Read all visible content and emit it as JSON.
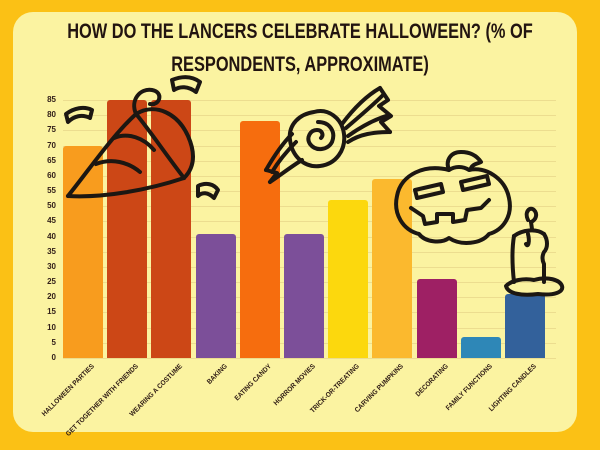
{
  "title": {
    "line1": "HOW DO THE LANCERS CELEBRATE HALLOWEEN? (% OF",
    "line2": "RESPONDENTS, APPROXIMATE)"
  },
  "colors": {
    "page_border": "#fbc115",
    "panel_background": "#fbf3a1",
    "gridline": "#ecdd8f",
    "text": "#2e1b14"
  },
  "chart_data": {
    "type": "bar",
    "title": "How do the Lancers celebrate Halloween? (% of respondents, approximate)",
    "categories": [
      "HALLOWEEN PARTIES",
      "GET TOGETHER WITH FRIENDS",
      "WEARING A COSTUME",
      "BAKING",
      "EATING CANDY",
      "HORROR MOVIES",
      "TRICK-OR-TREATING",
      "CARVING PUMPKINS",
      "DECORATING",
      "FAMILY FUNCTIONS",
      "LIGHTING CANDLES"
    ],
    "values": [
      70,
      85,
      85,
      41,
      78,
      41,
      52,
      59,
      26,
      7,
      21
    ],
    "bar_colors": [
      "#f89c1e",
      "#cc4716",
      "#cc4716",
      "#7c4f99",
      "#f66d0e",
      "#7c4f99",
      "#fcd80d",
      "#fbb92e",
      "#9e2064",
      "#2e87b7",
      "#33619b"
    ],
    "xlabel": "",
    "ylabel": "",
    "ylim": [
      0,
      85
    ],
    "ytick_step": 5,
    "grid": true,
    "legend_position": "none",
    "decorations": [
      "party-hat-doodle",
      "candy-doodle",
      "pumpkin-doodle",
      "candle-doodle"
    ]
  }
}
